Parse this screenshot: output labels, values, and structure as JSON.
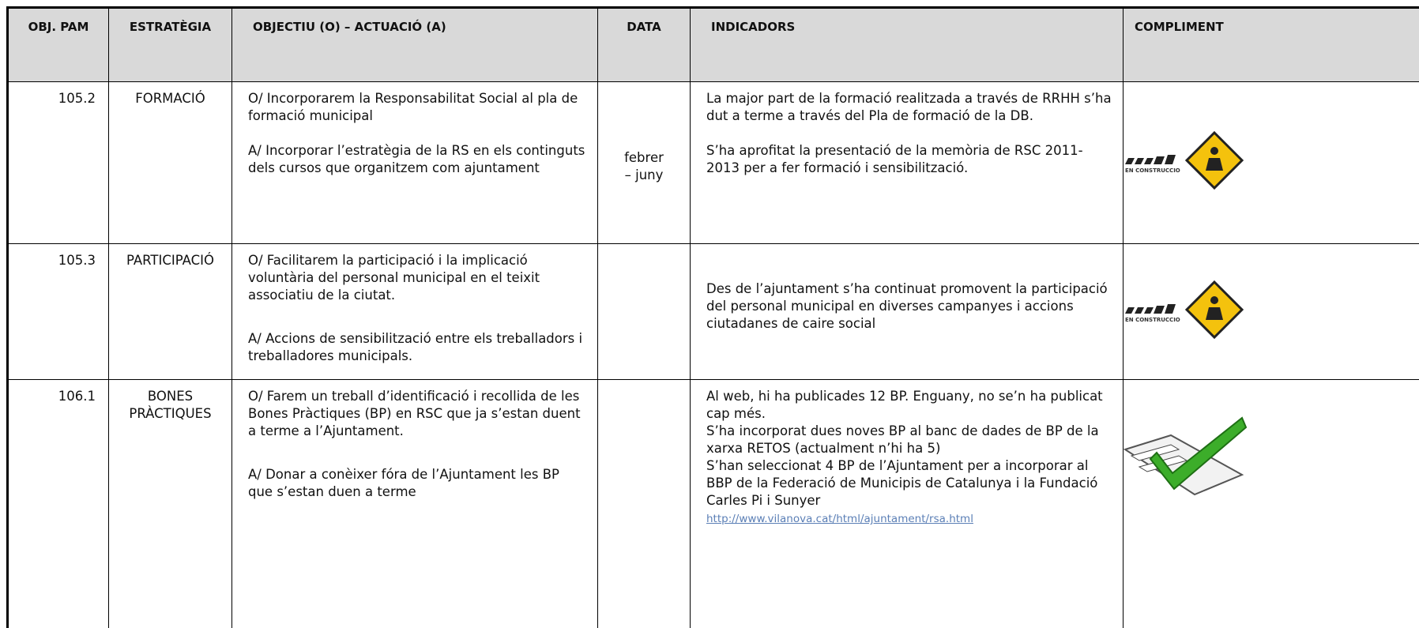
{
  "table": {
    "headers": [
      "OBJ. PAM",
      "ESTRATÈGIA",
      "OBJECTIU (O) – ACTUACIÓ (A)",
      "DATA",
      "INDICADORS",
      "COMPLIMENT"
    ],
    "rows": [
      {
        "obj": "105.2",
        "estrategia": "FORMACIÓ",
        "objectiu": [
          "O/ Incorporarem la Responsabilitat Social al pla de formació municipal",
          "A/ Incorporar l’estratègia de la RS en els continguts dels cursos que organitzem com ajuntament"
        ],
        "data": "febrer – juny",
        "indicadors": [
          "La major part de la formació realitzada a través de RRHH s’ha dut a terme a través del Pla de formació de la DB.",
          "S’ha aprofitat la presentació de la memòria de RSC 2011-2013 per a fer formació i sensibilització."
        ],
        "icon": "EN CONSTRUCCIO"
      },
      {
        "obj": "105.3",
        "estrategia": "PARTICIPACIÓ",
        "objectiu": [
          "O/ Facilitarem la participació i la implicació voluntària del personal municipal en el teixit associatiu de la ciutat.",
          "A/ Accions de sensibilització entre els treballadors i treballadores municipals."
        ],
        "indicadors": [
          "Des de l’ajuntament s’ha continuat promovent la participació del personal municipal en diverses campanyes i accions ciutadanes de caire social"
        ],
        "icon": "EN CONSTRUCCIO"
      },
      {
        "obj": "106.1",
        "estrategia": "BONES PRÀCTIQUES",
        "objectiu": [
          "O/ Farem un treball d’identificació i recollida de les Bones Pràctiques (BP) en RSC que ja s’estan duent a terme a l’Ajuntament.",
          "A/ Donar a conèixer fóra de l’Ajuntament les BP que s’estan duen a terme"
        ],
        "indicadors": [
          "Al web, hi ha publicades 12 BP. Enguany, no se’n ha publicat cap més.",
          "S’ha incorporat dues noves BP al banc de dades de BP de la xarxa RETOS (actualment n’hi ha 5)",
          "S’han seleccionat 4 BP de l’Ajuntament per a incorporar al BBP de la Federació de Municipis de Catalunya i la Fundació Carles Pi i Sunyer"
        ],
        "link": "http://www.vilanova.cat/html/ajuntament/rsa.html"
      }
    ]
  }
}
